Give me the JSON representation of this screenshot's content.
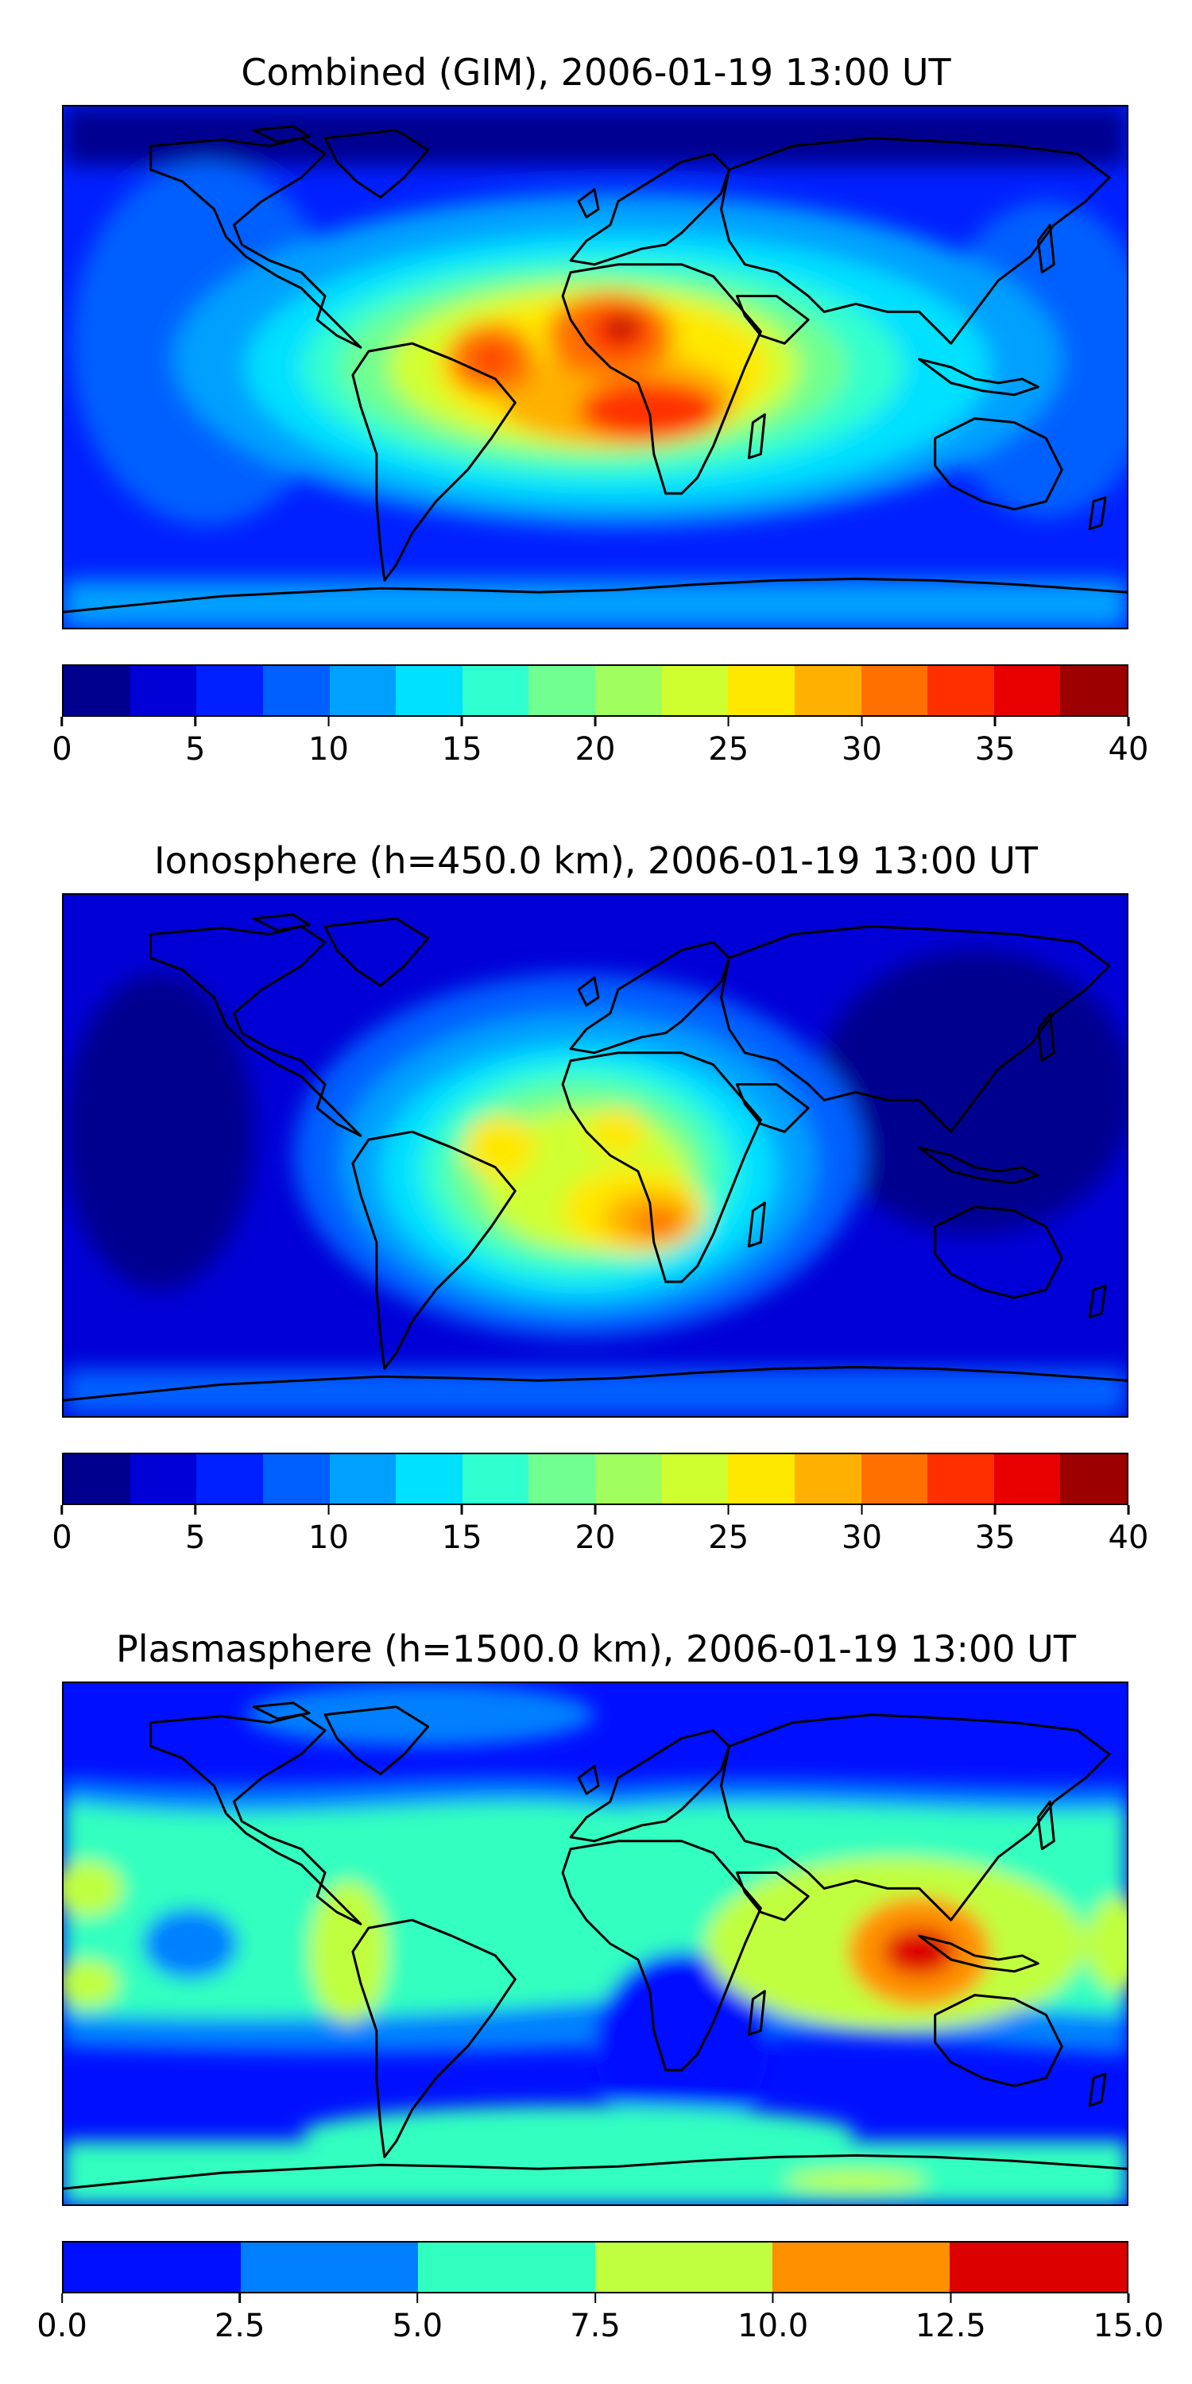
{
  "panels": [
    {
      "title": "Combined (GIM), 2006-01-19 13:00 UT",
      "colorbar": {
        "ticks": [
          "0",
          "5",
          "10",
          "15",
          "20",
          "25",
          "30",
          "35",
          "40"
        ],
        "colors": [
          "#00008f",
          "#0000d6",
          "#0020ff",
          "#0060ff",
          "#00a0ff",
          "#00e0ff",
          "#30ffcf",
          "#70ff90",
          "#a0ff5f",
          "#d0ff30",
          "#ffe800",
          "#ffb000",
          "#ff7000",
          "#ff3000",
          "#e80000",
          "#9c0000"
        ]
      }
    },
    {
      "title": "Ionosphere  (h=450.0 km), 2006-01-19 13:00 UT",
      "colorbar": {
        "ticks": [
          "0",
          "5",
          "10",
          "15",
          "20",
          "25",
          "30",
          "35",
          "40"
        ],
        "colors": [
          "#00008f",
          "#0000d6",
          "#0020ff",
          "#0060ff",
          "#00a0ff",
          "#00e0ff",
          "#30ffcf",
          "#70ff90",
          "#a0ff5f",
          "#d0ff30",
          "#ffe800",
          "#ffb000",
          "#ff7000",
          "#ff3000",
          "#e80000",
          "#9c0000"
        ]
      }
    },
    {
      "title": "Plasmasphere (h=1500.0 km), 2006-01-19 13:00 UT",
      "colorbar": {
        "ticks": [
          "0.0",
          "2.5",
          "5.0",
          "7.5",
          "10.0",
          "12.5",
          "15.0"
        ],
        "colors": [
          "#0010ff",
          "#0080ff",
          "#30ffc0",
          "#c0ff40",
          "#ff9000",
          "#dd0000"
        ]
      }
    }
  ]
}
